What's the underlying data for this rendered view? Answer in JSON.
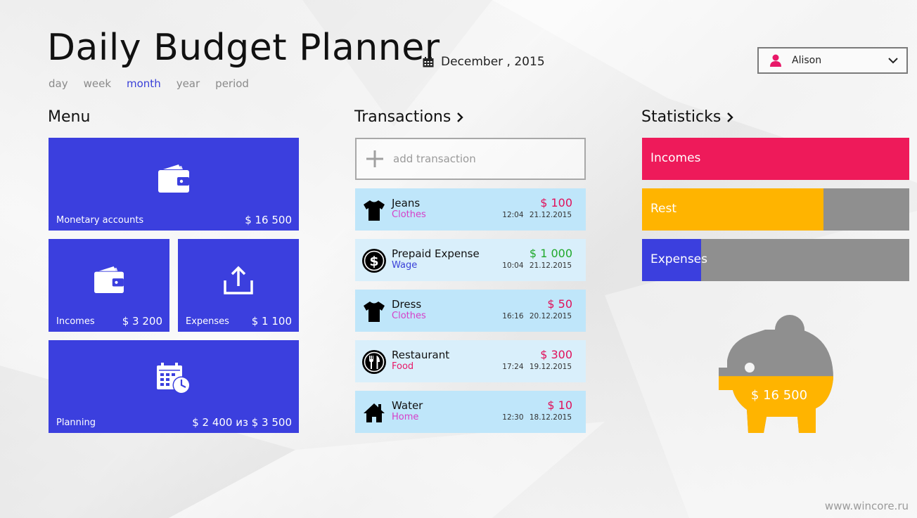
{
  "header": {
    "title": "Daily Budget Planner",
    "date": "December , 2015",
    "periods": [
      "day",
      "week",
      "month",
      "year",
      "period"
    ],
    "active_period": "month",
    "user": "Alison"
  },
  "menu": {
    "heading": "Menu",
    "tiles": {
      "accounts": {
        "label": "Monetary accounts",
        "value": "$ 16 500",
        "icon": "wallet-icon"
      },
      "incomes": {
        "label": "Incomes",
        "value": "$ 3 200",
        "icon": "wallet-icon"
      },
      "expenses": {
        "label": "Expenses",
        "value": "$ 1 100",
        "icon": "upload-icon"
      },
      "planning": {
        "label": "Planning",
        "value": "$ 2 400 из  $ 3 500",
        "icon": "calendar-clock-icon"
      }
    }
  },
  "transactions": {
    "heading": "Transactions",
    "add_label": "add transaction",
    "items": [
      {
        "name": "Jeans",
        "category": "Clothes",
        "amount": "$ 100",
        "time": "12:04",
        "date": "21.12.2015",
        "icon": "tshirt-icon",
        "amount_color": "#e0105a",
        "category_color": "#d63fc8"
      },
      {
        "name": "Prepaid Expense",
        "category": "Wage",
        "amount": "$ 1 000",
        "time": "10:04",
        "date": "21.12.2015",
        "icon": "dollar-coin-icon",
        "amount_color": "#1fa82a",
        "category_color": "#3a40d8"
      },
      {
        "name": "Dress",
        "category": "Clothes",
        "amount": "$ 50",
        "time": "16:16",
        "date": "20.12.2015",
        "icon": "tshirt-icon",
        "amount_color": "#e0105a",
        "category_color": "#d63fc8"
      },
      {
        "name": "Restaurant",
        "category": "Food",
        "amount": "$ 300",
        "time": "17:24",
        "date": "19.12.2015",
        "icon": "fork-knife-icon",
        "amount_color": "#e0105a",
        "category_color": "#e81868"
      },
      {
        "name": "Water",
        "category": "Home",
        "amount": "$ 10",
        "time": "12:30",
        "date": "18.12.2015",
        "icon": "house-icon",
        "amount_color": "#e0105a",
        "category_color": "#d63fc8"
      }
    ]
  },
  "statistics": {
    "heading": "Statisticks",
    "bars": [
      {
        "label": "Incomes",
        "fraction": 1.0,
        "color": "#ee1a5a"
      },
      {
        "label": "Rest",
        "fraction": 0.68,
        "color": "#ffb400"
      },
      {
        "label": "Expenses",
        "fraction": 0.22,
        "color": "#3b3fde"
      }
    ],
    "piggy_value": "$ 16 500",
    "piggy_fill_fraction": 0.55
  },
  "watermark": "www.wincore.ru"
}
